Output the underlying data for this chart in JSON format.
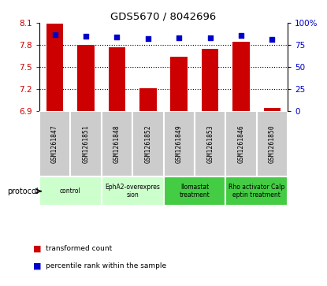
{
  "title": "GDS5670 / 8042696",
  "samples": [
    "GSM1261847",
    "GSM1261851",
    "GSM1261848",
    "GSM1261852",
    "GSM1261849",
    "GSM1261853",
    "GSM1261846",
    "GSM1261850"
  ],
  "transformed_counts": [
    8.09,
    7.8,
    7.77,
    7.21,
    7.64,
    7.75,
    7.84,
    6.95
  ],
  "percentile_ranks": [
    87,
    85,
    84,
    82,
    83,
    83,
    86,
    81
  ],
  "ylim_left": [
    6.9,
    8.1
  ],
  "ylim_right": [
    0,
    100
  ],
  "yticks_left": [
    6.9,
    7.2,
    7.5,
    7.8,
    8.1
  ],
  "yticks_right": [
    0,
    25,
    50,
    75,
    100
  ],
  "bar_color": "#cc0000",
  "dot_color": "#0000cc",
  "bar_bottom": 6.9,
  "protocol_label": "protocol",
  "legend_bar": "transformed count",
  "legend_dot": "percentile rank within the sample",
  "proto_spans": [
    {
      "start": 0,
      "end": 1,
      "label": "control",
      "color": "#ccffcc"
    },
    {
      "start": 2,
      "end": 3,
      "label": "EphA2-overexpres\nsion",
      "color": "#ccffcc"
    },
    {
      "start": 4,
      "end": 5,
      "label": "Ilomastat\ntreatment",
      "color": "#44cc44"
    },
    {
      "start": 6,
      "end": 7,
      "label": "Rho activator Calp\neptin treatment",
      "color": "#44cc44"
    }
  ],
  "sample_bg": "#cccccc",
  "sample_border": "#ffffff",
  "proto_border": "#ffffff"
}
